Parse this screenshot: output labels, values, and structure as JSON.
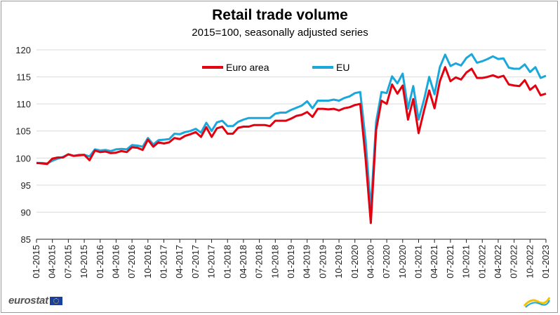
{
  "chart_data": {
    "type": "line",
    "title": "Retail trade volume",
    "subtitle": "2015=100, seasonally adjusted series",
    "ylim": [
      85,
      120
    ],
    "yticks": [
      85,
      90,
      95,
      100,
      105,
      110,
      115,
      120
    ],
    "x_labels": [
      "01-2015",
      "04-2015",
      "07-2015",
      "10-2015",
      "01-2016",
      "04-2016",
      "07-2016",
      "10-2016",
      "01-2017",
      "04-2017",
      "07-2017",
      "10-2017",
      "01-2018",
      "04-2018",
      "07-2018",
      "10-2018",
      "01-2019",
      "04-2019",
      "07-2019",
      "10-2019",
      "01-2020",
      "04-2020",
      "07-2020",
      "10-2020",
      "01-2021",
      "04-2021",
      "07-2021",
      "10-2021",
      "01-2022",
      "04-2022",
      "07-2022",
      "10-2022",
      "01-2023"
    ],
    "legend": [
      "Euro area",
      "EU"
    ],
    "series": [
      {
        "name": "Euro area",
        "color": "#e3000f",
        "values": [
          99.1,
          99.0,
          98.9,
          99.9,
          100.1,
          100.1,
          100.7,
          100.4,
          100.5,
          100.6,
          99.6,
          101.4,
          101.1,
          101.2,
          100.9,
          101.0,
          101.3,
          101.1,
          102.0,
          101.9,
          101.5,
          103.4,
          102.1,
          102.9,
          102.7,
          102.9,
          103.7,
          103.5,
          104.1,
          104.4,
          104.8,
          103.9,
          105.7,
          103.9,
          105.5,
          105.8,
          104.5,
          104.5,
          105.6,
          105.8,
          105.8,
          106.1,
          106.1,
          106.1,
          105.9,
          106.9,
          106.9,
          106.9,
          107.3,
          107.8,
          108.0,
          108.5,
          107.6,
          109.1,
          109.1,
          109.0,
          109.1,
          108.8,
          109.2,
          109.4,
          109.8,
          110.0,
          100.0,
          88.0,
          105.2,
          110.6,
          110.0,
          113.6,
          111.9,
          113.4,
          107.1,
          110.9,
          104.6,
          108.7,
          112.5,
          109.2,
          114.2,
          116.8,
          114.2,
          114.9,
          114.5,
          115.8,
          116.5,
          114.8,
          114.8,
          115.0,
          115.3,
          114.9,
          115.2,
          113.6,
          113.4,
          113.3,
          114.4,
          112.6,
          113.4,
          111.6,
          111.9
        ]
      },
      {
        "name": "EU",
        "color": "#1aa8dc",
        "values": [
          99.1,
          99.1,
          99.0,
          99.5,
          99.9,
          100.2,
          100.7,
          100.4,
          100.6,
          100.6,
          100.3,
          101.6,
          101.4,
          101.5,
          101.3,
          101.6,
          101.7,
          101.6,
          102.4,
          102.3,
          102.1,
          103.7,
          102.5,
          103.3,
          103.4,
          103.5,
          104.5,
          104.4,
          104.8,
          105.0,
          105.4,
          104.7,
          106.5,
          105.0,
          106.6,
          106.9,
          105.9,
          105.9,
          106.7,
          107.1,
          107.4,
          107.4,
          107.4,
          107.4,
          107.4,
          108.2,
          108.4,
          108.4,
          108.9,
          109.3,
          109.7,
          110.5,
          109.2,
          110.6,
          110.6,
          110.6,
          110.8,
          110.6,
          111.1,
          111.4,
          112.0,
          112.2,
          103.4,
          90.5,
          106.7,
          112.2,
          112.0,
          115.1,
          113.8,
          115.6,
          109.1,
          113.3,
          107.1,
          110.7,
          115.0,
          111.8,
          116.8,
          119.1,
          117.0,
          117.5,
          117.1,
          118.5,
          119.2,
          117.6,
          117.9,
          118.3,
          118.8,
          118.3,
          118.4,
          116.7,
          116.5,
          116.5,
          117.3,
          115.9,
          116.8,
          114.8,
          115.2
        ]
      }
    ]
  },
  "footer": {
    "logo_text": "eurostat"
  }
}
